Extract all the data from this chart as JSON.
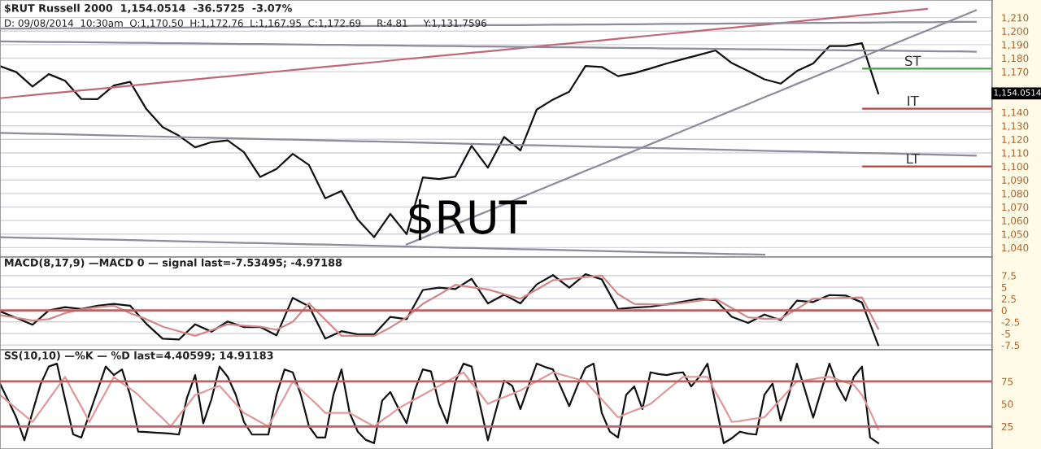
{
  "chart_data": [
    {
      "type": "line",
      "title": "$RUT Russell 2000  1,154.0514  -36.5725  -3.07%",
      "subtitle": "D: 09/08/2014  10:30am  O:1,170.50  H:1,172.76  L:1,167.95  C:1,172.69     R:4.81     Y:1,131.7596",
      "annotations": [
        "$RUT",
        "1,154.0514"
      ],
      "categories": [
        null,
        null,
        null,
        null,
        null,
        null,
        null,
        null,
        null,
        null,
        null,
        null,
        null,
        null,
        null,
        null,
        null,
        null,
        null,
        null,
        null,
        null,
        null,
        null,
        null,
        null,
        null,
        null,
        null,
        null,
        null,
        null,
        null,
        null,
        null,
        null,
        null,
        null,
        null,
        null,
        null,
        null,
        null,
        null,
        null,
        null,
        null,
        null,
        null,
        null,
        null,
        null,
        null,
        null,
        null,
        null,
        null,
        null,
        null,
        null,
        null
      ],
      "series": [
        {
          "color": "#111111",
          "values": [
            1174.1,
            1169.7,
            1159.0,
            1168.2,
            1163.3,
            1149.8,
            1149.7,
            1159.8,
            1162.5,
            1142.4,
            1129.0,
            1122.7,
            1114.1,
            1117.9,
            1119.2,
            1110.5,
            1092.2,
            1098.1,
            1109.3,
            1101.0,
            1076.5,
            1081.8,
            1060.6,
            1047.7,
            1064.9,
            1049.9,
            1091.9,
            1090.6,
            1092.5,
            1115.2,
            1099.1,
            1121.8,
            1111.9,
            1142.0,
            1149.4,
            1155.2,
            1174.2,
            1173.5,
            1166.7,
            1169.0,
            1172.4,
            1176.1,
            1179.3,
            1182.5,
            1185.7,
            1176.4,
            1170.6,
            1164.4,
            1161.2,
            1170.5,
            1176.1,
            1188.9,
            1188.9,
            1191.1,
            1154.0,
            null,
            null,
            null,
            null,
            null,
            null
          ]
        },
        {
          "color": "#c06878",
          "values": [
            1150.4,
            1151.6,
            1152.7,
            1153.9,
            1155.0,
            1156.2,
            1157.3,
            1158.5,
            1159.7,
            1160.8,
            1162.0,
            1163.1,
            1164.3,
            1165.5,
            1166.6,
            1167.8,
            1168.9,
            1170.1,
            1171.2,
            1172.4,
            1173.6,
            1174.7,
            1175.9,
            1177.0,
            1178.2,
            1179.4,
            1180.5,
            1181.7,
            1182.8,
            1184.0,
            1185.1,
            1186.3,
            1187.5,
            1188.6,
            1189.8,
            1190.9,
            1192.1,
            1193.2,
            1194.4,
            1195.6,
            1196.7,
            1197.9,
            1199.0,
            1200.2,
            1201.4,
            1202.5,
            1203.7,
            1204.8,
            1206.0,
            1207.1,
            1208.3,
            1209.5,
            1210.6,
            1211.8,
            1212.9,
            1214.1,
            1215.2,
            1216.4,
            null,
            null,
            null
          ]
        },
        {
          "color": "#8c8c9c",
          "values": [
            1201.8,
            1201.9,
            1202.0,
            1202.1,
            1202.1,
            1202.2,
            1202.3,
            1202.4,
            1202.5,
            1202.6,
            1202.7,
            1202.7,
            1202.8,
            1202.9,
            1203.0,
            1203.1,
            1203.2,
            1203.2,
            1203.3,
            1203.4,
            1203.5,
            1203.6,
            1203.7,
            1203.8,
            1203.8,
            1203.9,
            1204.0,
            1204.1,
            1204.2,
            1204.3,
            1204.4,
            1204.4,
            1204.5,
            1204.6,
            1204.7,
            1204.8,
            1204.9,
            1204.9,
            1205.0,
            1205.1,
            1205.2,
            1205.3,
            1205.4,
            1205.5,
            1205.5,
            1205.6,
            1205.7,
            1205.8,
            1205.9,
            1206.0,
            1206.1,
            1206.1,
            1206.2,
            1206.3,
            1206.4,
            1206.5,
            1206.6,
            1206.6,
            1206.7,
            1206.8,
            1206.9
          ]
        },
        {
          "color": "#8c8c9c",
          "values": [
            1192.4,
            1192.3,
            1192.1,
            1192.0,
            1191.9,
            1191.8,
            1191.6,
            1191.5,
            1191.4,
            1191.3,
            1191.1,
            1191.0,
            1190.9,
            1190.8,
            1190.6,
            1190.5,
            1190.4,
            1190.3,
            1190.1,
            1190.0,
            1189.9,
            1189.8,
            1189.6,
            1189.5,
            1189.4,
            1189.2,
            1189.1,
            1189.0,
            1188.9,
            1188.7,
            1188.6,
            1188.5,
            1188.4,
            1188.2,
            1188.1,
            1188.0,
            1187.9,
            1187.7,
            1187.6,
            1187.5,
            1187.4,
            1187.2,
            1187.1,
            1187.0,
            1186.9,
            1186.7,
            1186.6,
            1186.5,
            1186.4,
            1186.2,
            1186.1,
            1186.0,
            1185.8,
            1185.7,
            1185.6,
            1185.5,
            1185.3,
            1185.2,
            1185.1,
            1185.0,
            1184.8
          ]
        },
        {
          "color": "#8c8c9c",
          "values": [
            1124.8,
            1124.5,
            1124.2,
            1124.0,
            1123.7,
            1123.4,
            1123.1,
            1122.8,
            1122.6,
            1122.3,
            1122.0,
            1121.7,
            1121.4,
            1121.2,
            1120.9,
            1120.6,
            1120.3,
            1120.0,
            1119.8,
            1119.5,
            1119.2,
            1118.9,
            1118.6,
            1118.4,
            1118.1,
            1117.8,
            1117.5,
            1117.2,
            1117.0,
            1116.7,
            1116.4,
            1116.1,
            1115.8,
            1115.6,
            1115.3,
            1115.0,
            1114.7,
            1114.4,
            1114.2,
            1113.9,
            1113.6,
            1113.3,
            1113.0,
            1112.7,
            1112.5,
            1112.2,
            1111.9,
            1111.6,
            1111.3,
            1111.1,
            1110.8,
            1110.5,
            1110.2,
            1109.9,
            1109.7,
            1109.4,
            1109.1,
            1108.8,
            1108.5,
            1108.3,
            1108.0
          ]
        },
        {
          "color": "#8c8c9c",
          "values": [
            null,
            null,
            null,
            null,
            null,
            null,
            null,
            null,
            null,
            null,
            null,
            null,
            null,
            null,
            null,
            null,
            null,
            null,
            null,
            null,
            null,
            null,
            null,
            null,
            null,
            1042.3,
            1047.2,
            1052.2,
            1057.1,
            1062.1,
            1067.0,
            1072.0,
            1076.9,
            1081.9,
            1086.8,
            1091.7,
            1096.7,
            1101.6,
            1106.6,
            1111.5,
            1116.5,
            1121.4,
            1126.4,
            1131.3,
            1136.3,
            1141.2,
            1146.1,
            1151.1,
            1156.0,
            1161.0,
            1165.9,
            1170.9,
            1175.8,
            1180.8,
            1185.7,
            1190.7,
            1195.6,
            1200.5,
            1205.5,
            1210.4,
            1215.4
          ]
        },
        {
          "color": "#8c8c9c",
          "values": [
            1047.7,
            1047.4,
            1047.1,
            1046.9,
            1046.6,
            1046.3,
            1046.0,
            1045.8,
            1045.5,
            1045.2,
            1044.9,
            1044.7,
            1044.4,
            1044.1,
            1043.8,
            1043.5,
            1043.3,
            1043.0,
            1042.7,
            1042.4,
            1042.2,
            1041.9,
            1041.6,
            1041.3,
            1041.1,
            1040.8,
            1040.5,
            1040.2,
            1039.9,
            1039.7,
            1039.4,
            1039.1,
            1038.8,
            1038.6,
            1038.3,
            1038.0,
            1037.7,
            1037.5,
            1037.2,
            1036.9,
            1036.6,
            1036.3,
            1036.1,
            1035.8,
            1035.5,
            1035.2,
            1035.0,
            1034.7,
            null,
            null,
            null,
            null,
            null,
            null,
            null,
            null,
            null,
            null,
            null,
            null,
            null
          ]
        }
      ],
      "ylim": [
        1033,
        1223
      ],
      "yticks": [
        {
          "value": 1040,
          "label": "1,040"
        },
        {
          "value": 1050,
          "label": "1,050"
        },
        {
          "value": 1060,
          "label": "1,060"
        },
        {
          "value": 1070,
          "label": "1,070"
        },
        {
          "value": 1080,
          "label": "1,080"
        },
        {
          "value": 1090,
          "label": "1,090"
        },
        {
          "value": 1100,
          "label": "1,100"
        },
        {
          "value": 1110,
          "label": "1,110"
        },
        {
          "value": 1120,
          "label": "1,120"
        },
        {
          "value": 1130,
          "label": "1,130"
        },
        {
          "value": 1140,
          "label": "1,140"
        },
        {
          "value": 1170,
          "label": "1,170"
        },
        {
          "value": 1180,
          "label": "1,180"
        },
        {
          "value": 1190,
          "label": "1,190"
        },
        {
          "value": 1200,
          "label": "1,200"
        },
        {
          "value": 1210,
          "label": "1,210"
        }
      ],
      "ref_lines": [
        {
          "axis": "y",
          "value": 1172.3,
          "label": "ST",
          "color": "#40a040"
        },
        {
          "axis": "y",
          "value": 1142.7,
          "label": "IT",
          "color": "#c04040"
        },
        {
          "axis": "y",
          "value": 1100,
          "label": "LT",
          "color": "#c04040"
        }
      ],
      "grid": "y",
      "tick_labels": "y"
    },
    {
      "type": "line",
      "title": "MACD(8,17,9) —MACD 0 — signal last=-7.53495; -4.97188",
      "categories": [
        null,
        null,
        null,
        null,
        null,
        null,
        null,
        null,
        null,
        null,
        null,
        null,
        null,
        null,
        null,
        null,
        null,
        null,
        null,
        null,
        null,
        null,
        null,
        null,
        null,
        null,
        null,
        null,
        null,
        null,
        null,
        null,
        null,
        null,
        null,
        null,
        null,
        null,
        null,
        null,
        null,
        null,
        null,
        null,
        null,
        null,
        null,
        null,
        null,
        null,
        null,
        null,
        null,
        null,
        null,
        null,
        null,
        null,
        null,
        null,
        null
      ],
      "series": [
        {
          "color": "#111111",
          "values": [
            -0.2,
            -1.6,
            -3.1,
            0.0,
            0.7,
            0.3,
            1.0,
            1.4,
            1.0,
            -2.9,
            -6.1,
            -6.3,
            -3.0,
            -4.6,
            -2.4,
            -3.6,
            -3.6,
            -5.4,
            2.7,
            0.9,
            -6.1,
            -4.5,
            -5.2,
            -5.2,
            -1.4,
            -1.9,
            4.4,
            4.9,
            4.6,
            6.8,
            1.5,
            3.4,
            1.5,
            5.6,
            7.6,
            4.9,
            7.8,
            6.7,
            0.3,
            0.6,
            0.8,
            1.3,
            1.9,
            2.5,
            2.2,
            -1.4,
            -2.7,
            -0.9,
            -2.1,
            2.1,
            1.8,
            3.3,
            3.2,
            1.7,
            -7.5,
            null,
            null,
            null,
            null,
            null,
            null
          ]
        },
        {
          "color": "#d08888",
          "values": [
            -1,
            -1.6,
            -2.2,
            -1.9,
            -0.6,
            0.2,
            0.7,
            1.0,
            -0.6,
            -1.9,
            -3.5,
            -4.5,
            -5.5,
            -4.3,
            -3,
            -3.3,
            -3.5,
            -4.2,
            -2.5,
            1.5,
            -2,
            -5.5,
            -5.5,
            -5.5,
            -3.7,
            -1.5,
            1.4,
            3.4,
            5.5,
            5,
            4.5,
            3.5,
            2.5,
            4.5,
            6.5,
            6.8,
            7.2,
            7.5,
            3.5,
            1.4,
            1.3,
            1.2,
            1.6,
            2.1,
            2.5,
            0.5,
            -1.5,
            -1.8,
            -1.8,
            0.3,
            2.5,
            2.6,
            2.7,
            2.8,
            -4,
            null,
            null,
            null,
            null,
            null,
            null
          ]
        }
      ],
      "ylim": [
        -8.5,
        11.5
      ],
      "yticks": [
        -7.5,
        -5,
        -2.5,
        0,
        2.5,
        5,
        7.5
      ],
      "ref_lines": [
        {
          "axis": "y",
          "value": 0,
          "color": "#c06060"
        }
      ],
      "grid": "y",
      "tick_labels": "y"
    },
    {
      "type": "line",
      "title": "SS(10,10) —%K — %D last=4.40599; 14.91183",
      "categories": [
        null,
        null,
        null,
        null,
        null,
        null,
        null,
        null,
        null,
        null,
        null,
        null,
        null,
        null,
        null,
        null,
        null,
        null,
        null,
        null,
        null,
        null,
        null,
        null,
        null,
        null,
        null,
        null,
        null,
        null,
        null,
        null,
        null,
        null,
        null,
        null,
        null,
        null,
        null,
        null,
        null,
        null,
        null,
        null,
        null,
        null,
        null,
        null,
        null,
        null,
        null,
        null,
        null,
        null,
        null,
        null,
        null,
        null,
        null,
        null,
        null,
        null,
        null,
        null,
        null,
        null,
        null,
        null,
        null,
        null,
        null,
        null,
        null,
        null,
        null,
        null,
        null,
        null,
        null,
        null,
        null,
        null,
        null,
        null,
        null,
        null,
        null,
        null,
        null,
        null,
        null,
        null,
        null,
        null,
        null,
        null,
        null,
        null,
        null,
        null,
        null,
        null,
        null,
        null,
        null,
        null,
        null,
        null,
        null,
        null,
        null,
        null,
        null,
        null,
        null,
        null,
        null,
        null,
        null,
        null,
        null,
        null
      ],
      "series": [
        {
          "color": "#111111",
          "values": [
            72.5,
            54,
            35,
            9.7,
            41,
            72,
            91.4,
            94.6,
            55,
            16.2,
            12.7,
            39,
            65,
            91.4,
            82,
            88.2,
            60,
            19.2,
            18.8,
            18.2,
            17.6,
            17,
            16,
            57,
            82,
            28.6,
            55,
            91.4,
            80,
            60,
            30,
            16,
            16,
            16,
            60,
            88.2,
            85,
            60,
            25,
            12.7,
            12.7,
            60,
            88.2,
            40,
            19.2,
            10,
            6.5,
            53.7,
            63.1,
            45,
            28.6,
            65,
            88.2,
            86,
            50,
            28.6,
            75,
            94.6,
            91.4,
            50,
            9.7,
            43,
            75.8,
            70,
            44.2,
            70,
            94.6,
            91,
            88.2,
            68,
            47.5,
            70,
            90,
            94.6,
            40,
            19.2,
            12.7,
            60,
            69.3,
            44.2,
            85,
            83,
            82,
            84,
            85,
            69.3,
            80,
            94.6,
            50,
            6.5,
            12,
            19.2,
            17,
            16,
            60,
            72.5,
            31.6,
            60,
            94.6,
            65,
            34.8,
            65,
            94.6,
            70,
            53.7,
            80,
            91.4,
            12.7,
            6.5,
            null,
            null,
            null,
            null,
            null,
            null,
            null,
            null,
            null,
            null,
            null,
            null,
            null
          ]
        },
        {
          "color": "#e09a9a",
          "values": [
            60,
            52.5,
            45,
            37.5,
            30,
            42.5,
            55,
            67.5,
            80,
            63,
            47,
            30,
            47,
            63,
            80,
            73,
            67,
            60,
            51,
            42.5,
            34,
            25,
            37,
            48,
            60,
            63,
            67,
            70,
            60,
            50,
            40,
            35,
            30,
            25,
            42,
            58,
            75,
            66,
            57.5,
            49,
            40,
            40,
            40,
            40,
            35,
            30,
            25,
            32,
            38,
            45,
            50,
            55,
            60,
            65,
            70,
            75,
            80,
            85,
            73,
            62,
            50,
            54,
            57.5,
            61,
            65,
            70,
            75,
            80,
            85,
            82.5,
            80,
            77.5,
            75,
            65,
            55,
            45,
            35,
            39,
            42.5,
            46,
            50,
            57.5,
            65,
            72.5,
            80,
            80,
            80,
            80,
            63,
            47,
            30,
            31,
            32.5,
            34,
            35,
            45,
            55,
            65,
            75,
            76,
            77.5,
            79,
            80,
            77,
            74,
            71,
            60,
            42,
            22,
            null,
            null,
            null,
            null,
            null,
            null,
            null,
            null,
            null,
            null,
            null,
            null,
            null
          ]
        }
      ],
      "ylim": [
        0,
        110
      ],
      "yticks": [
        25,
        50,
        75
      ],
      "ref_lines": [
        {
          "axis": "y",
          "value": 75,
          "color": "#c06060"
        },
        {
          "axis": "y",
          "value": 25,
          "color": "#c06060"
        }
      ],
      "tick_labels": "y"
    }
  ]
}
